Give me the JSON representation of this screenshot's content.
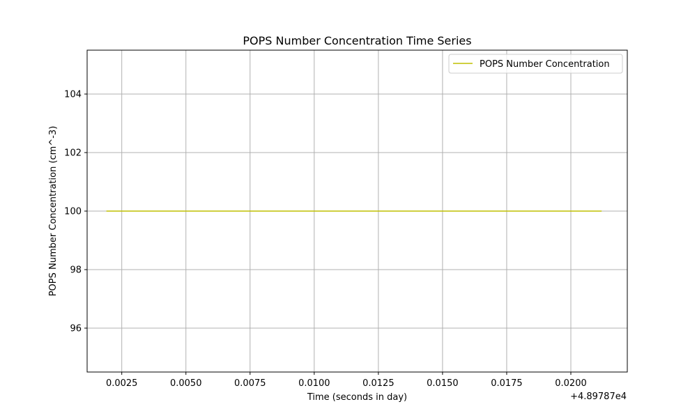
{
  "chart_data": {
    "type": "line",
    "title": "POPS Number Concentration Time Series",
    "xlabel": "Time (seconds in day)",
    "ylabel": "POPS Number Concentration (cm^-3)",
    "x_offset_label": "+4.89787e4",
    "xlim": [
      0.00115,
      0.0222
    ],
    "ylim": [
      94.5,
      105.5
    ],
    "x_ticks": [
      0.0025,
      0.005,
      0.0075,
      0.01,
      0.0125,
      0.015,
      0.0175,
      0.02
    ],
    "x_tick_labels": [
      "0.0025",
      "0.0050",
      "0.0075",
      "0.0100",
      "0.0125",
      "0.0150",
      "0.0175",
      "0.0200"
    ],
    "y_ticks": [
      96,
      98,
      100,
      102,
      104
    ],
    "y_tick_labels": [
      "96",
      "98",
      "100",
      "102",
      "104"
    ],
    "grid": true,
    "legend": "top-right",
    "series": [
      {
        "name": "POPS Number Concentration",
        "color": "#bfbf00",
        "x": [
          0.0019,
          0.0212
        ],
        "y": [
          100,
          100
        ]
      }
    ]
  }
}
